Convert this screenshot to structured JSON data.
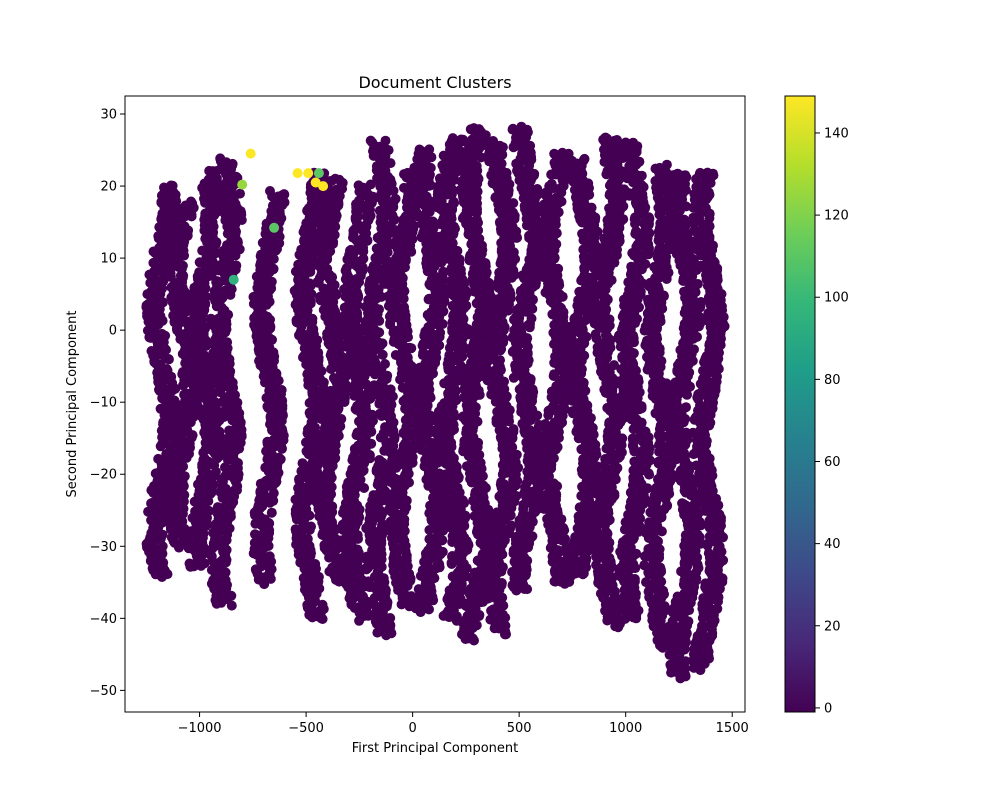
{
  "chart_data": {
    "type": "scatter",
    "title": "Document Clusters",
    "xlabel": "First Principal Component",
    "ylabel": "Second Principal Component",
    "xlim": [
      -1350,
      1560
    ],
    "ylim": [
      -53,
      32.5
    ],
    "xticks": [
      -1000,
      -500,
      0,
      500,
      1000,
      1500
    ],
    "yticks": [
      -50,
      -40,
      -30,
      -20,
      -10,
      0,
      10,
      20,
      30
    ],
    "grid": false,
    "legend": "none",
    "marker_size": 5,
    "colorbar": {
      "label": "",
      "colormap": "viridis",
      "range": [
        -1,
        149
      ],
      "ticks": [
        0,
        20,
        40,
        60,
        80,
        100,
        120,
        140
      ],
      "colors": [
        "#440154",
        "#482878",
        "#3e4989",
        "#31688e",
        "#26828e",
        "#1f9e89",
        "#35b779",
        "#6ece58",
        "#b5de2b",
        "#fde725"
      ]
    },
    "base_cluster_color": "#440154",
    "base_cluster_bands": [
      {
        "x": -1175,
        "y_range": [
          -34,
          20
        ]
      },
      {
        "x": -1075,
        "y_range": [
          -30,
          18
        ]
      },
      {
        "x": -975,
        "y_range": [
          -33,
          22
        ]
      },
      {
        "x": -875,
        "y_range": [
          -38,
          24
        ]
      },
      {
        "x": -675,
        "y_range": [
          -35,
          19
        ]
      },
      {
        "x": -480,
        "y_range": [
          -40,
          22
        ]
      },
      {
        "x": -380,
        "y_range": [
          -35,
          21
        ]
      },
      {
        "x": -260,
        "y_range": [
          -40,
          20
        ]
      },
      {
        "x": -150,
        "y_range": [
          -42,
          26
        ]
      },
      {
        "x": -40,
        "y_range": [
          -38,
          22
        ]
      },
      {
        "x": 80,
        "y_range": [
          -39,
          25
        ]
      },
      {
        "x": 190,
        "y_range": [
          -40,
          27
        ]
      },
      {
        "x": 300,
        "y_range": [
          -43,
          28
        ]
      },
      {
        "x": 420,
        "y_range": [
          -42,
          26
        ]
      },
      {
        "x": 540,
        "y_range": [
          -36,
          28
        ]
      },
      {
        "x": 670,
        "y_range": [
          -35,
          25
        ]
      },
      {
        "x": 800,
        "y_range": [
          -34,
          24
        ]
      },
      {
        "x": 920,
        "y_range": [
          -41,
          27
        ]
      },
      {
        "x": 1040,
        "y_range": [
          -40,
          26
        ]
      },
      {
        "x": 1160,
        "y_range": [
          -44,
          23
        ]
      },
      {
        "x": 1280,
        "y_range": [
          -48,
          22
        ]
      },
      {
        "x": 1390,
        "y_range": [
          -47,
          22
        ]
      }
    ],
    "highlight_points": [
      {
        "x": -760,
        "y": 24.5,
        "value": 149
      },
      {
        "x": -540,
        "y": 21.8,
        "value": 149
      },
      {
        "x": -490,
        "y": 21.8,
        "value": 149
      },
      {
        "x": -455,
        "y": 20.5,
        "value": 149
      },
      {
        "x": -420,
        "y": 20.0,
        "value": 149
      },
      {
        "x": -440,
        "y": 21.8,
        "value": 110
      },
      {
        "x": -650,
        "y": 14.2,
        "value": 110
      },
      {
        "x": -800,
        "y": 20.2,
        "value": 125
      },
      {
        "x": -840,
        "y": 7.0,
        "value": 95
      }
    ]
  }
}
